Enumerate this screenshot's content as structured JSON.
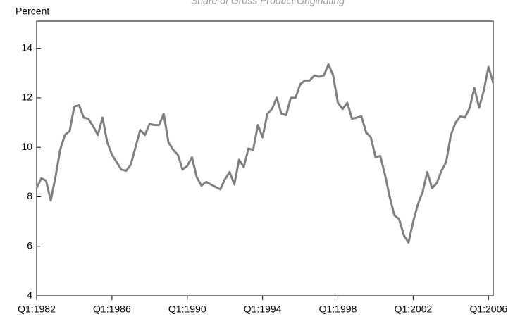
{
  "chart_data": {
    "type": "line",
    "title": "Share of Gross Product Originating",
    "y_label": "Percent",
    "categories": [
      "Q1:1982",
      null,
      null,
      null,
      null,
      null,
      null,
      null,
      null,
      null,
      null,
      null,
      null,
      null,
      null,
      null,
      "Q1:1986",
      null,
      null,
      null,
      null,
      null,
      null,
      null,
      null,
      null,
      null,
      null,
      null,
      null,
      null,
      null,
      "Q1:1990",
      null,
      null,
      null,
      null,
      null,
      null,
      null,
      null,
      null,
      null,
      null,
      null,
      null,
      null,
      null,
      "Q1:1994",
      null,
      null,
      null,
      null,
      null,
      null,
      null,
      null,
      null,
      null,
      null,
      null,
      null,
      null,
      null,
      "Q1:1998",
      null,
      null,
      null,
      null,
      null,
      null,
      null,
      null,
      null,
      null,
      null,
      null,
      null,
      null,
      null,
      "Q1:2002",
      null,
      null,
      null,
      null,
      null,
      null,
      null,
      null,
      null,
      null,
      null,
      null,
      null,
      null,
      null,
      "Q1:2006",
      null
    ],
    "values": [
      8.35,
      8.75,
      8.65,
      7.85,
      8.8,
      9.9,
      10.5,
      10.65,
      11.65,
      11.7,
      11.2,
      11.15,
      10.85,
      10.5,
      11.2,
      10.2,
      9.7,
      9.4,
      9.1,
      9.05,
      9.3,
      10.0,
      10.7,
      10.5,
      10.95,
      10.9,
      10.9,
      11.35,
      10.2,
      9.9,
      9.7,
      9.1,
      9.25,
      9.6,
      8.8,
      8.45,
      8.6,
      8.5,
      8.4,
      8.3,
      8.7,
      9.0,
      8.5,
      9.5,
      9.2,
      9.95,
      9.9,
      10.9,
      10.4,
      11.35,
      11.55,
      12.0,
      11.35,
      11.3,
      12.0,
      12.0,
      12.55,
      12.7,
      12.7,
      12.9,
      12.85,
      12.9,
      13.35,
      12.9,
      11.8,
      11.55,
      11.8,
      11.15,
      11.2,
      11.25,
      10.6,
      10.4,
      9.6,
      9.65,
      8.9,
      8.0,
      7.25,
      7.1,
      6.45,
      6.15,
      7.0,
      7.7,
      8.2,
      9.0,
      8.35,
      8.55,
      9.05,
      9.4,
      10.5,
      11.0,
      11.25,
      11.2,
      11.6,
      12.4,
      11.6,
      12.3,
      13.25,
      12.6
    ],
    "color": "#808080",
    "ylim": [
      4,
      15.1
    ],
    "yticks": [
      4,
      6,
      8,
      10,
      12,
      14
    ]
  }
}
